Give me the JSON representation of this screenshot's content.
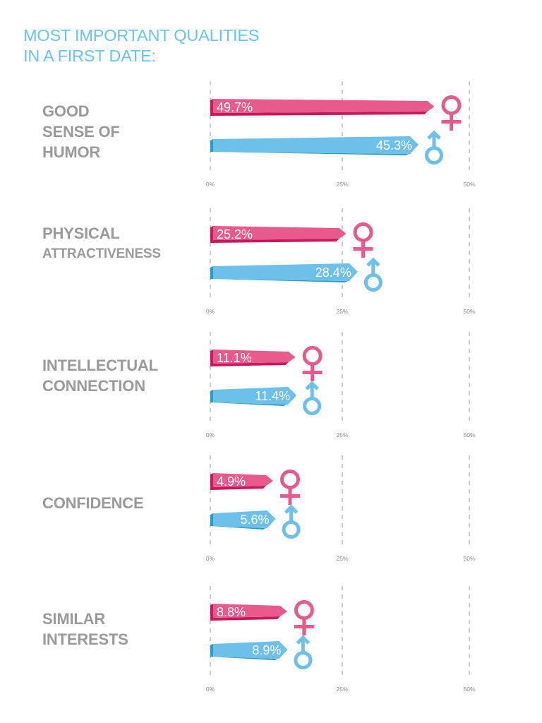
{
  "title": [
    "MOST IMPORTANT QUALITIES",
    "IN A FIRST DATE:"
  ],
  "colors": {
    "title": "#6cc3ea",
    "female": "#e95a8c",
    "female_dark": "#c9175a",
    "male": "#6cc0ea",
    "male_dark": "#2a9ac6",
    "label": "#9a9a9a",
    "grid": "#9a9a9a"
  },
  "chart_data": {
    "type": "bar",
    "title": "MOST IMPORTANT QUALITIES IN A FIRST DATE:",
    "xlabel": "",
    "ylabel": "",
    "xlim": [
      0,
      50
    ],
    "ticks": [
      "0%",
      "25%",
      "50%"
    ],
    "grid": true,
    "legend": "icons beside bars (female ♀ pink, male ♂ blue)",
    "categories": [
      {
        "lines": [
          "GOOD",
          "SENSE OF",
          "HUMOR"
        ],
        "small_line": -1
      },
      {
        "lines": [
          "PHYSICAL",
          "ATTRACTIVENESS"
        ],
        "small_line": 1
      },
      {
        "lines": [
          "INTELLECTUAL",
          "CONNECTION"
        ],
        "small_line": -1
      },
      {
        "lines": [
          "CONFIDENCE"
        ],
        "small_line": -1
      },
      {
        "lines": [
          "SIMILAR",
          "INTERESTS"
        ],
        "small_line": -1
      }
    ],
    "series": [
      {
        "name": "Female",
        "icon": "female-symbol-icon",
        "values": [
          49.7,
          25.2,
          11.1,
          4.9,
          8.8
        ],
        "labels": [
          "49.7%",
          "25.2%",
          "11.1%",
          "4.9%",
          "8.8%"
        ]
      },
      {
        "name": "Male",
        "icon": "male-symbol-icon",
        "values": [
          45.3,
          28.4,
          11.4,
          5.6,
          8.9
        ],
        "labels": [
          "45.3%",
          "28.4%",
          "11.4%",
          "5.6%",
          "8.9%"
        ]
      }
    ]
  }
}
